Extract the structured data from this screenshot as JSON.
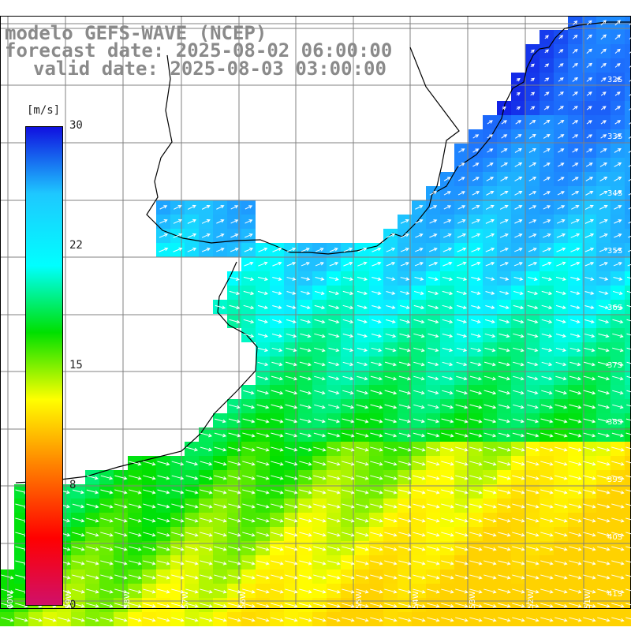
{
  "title": {
    "line1": "modelo GEFS-WAVE (NCEP)",
    "line2": "forecast date: 2025-08-02 06:00:00",
    "line3": "valid date: 2025-08-03 03:00:00"
  },
  "colorbar": {
    "unit": "[m/s]",
    "ticks": [
      "30",
      "22",
      "15",
      "8",
      "0"
    ],
    "stops": [
      "#1010e0",
      "#1ec8ff",
      "#00ffff",
      "#00e000",
      "#ffff00",
      "#ff8000",
      "#ff0000",
      "#d0106a"
    ]
  },
  "lat_labels": [
    "32S",
    "33S",
    "34S",
    "35S",
    "36S",
    "37S",
    "38S",
    "39S",
    "40S",
    "41S"
  ],
  "lon_labels": [
    "60W",
    "59W",
    "58W",
    "57W",
    "56W",
    "55W",
    "54W",
    "53W",
    "52W",
    "51W"
  ],
  "colors": {
    "land": "#ffffff",
    "grid": "#808080",
    "coast": "#000000",
    "arrows": "#ffffff"
  }
}
